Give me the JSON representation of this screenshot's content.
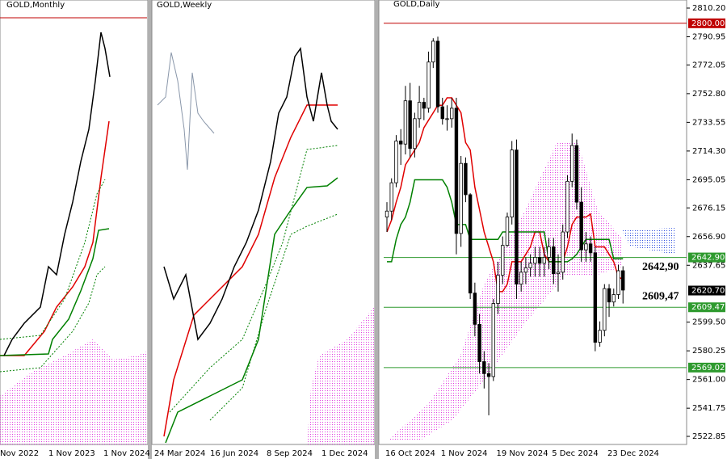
{
  "chart_data": [
    {
      "type": "candlestick",
      "title": "GOLD,Monthly",
      "x_labels": [
        "Nov 2022",
        "1 Nov 2023",
        "1 Nov 2024"
      ]
    },
    {
      "type": "candlestick",
      "title": "GOLD,Weekly",
      "x_labels": [
        "24 Mar 2024",
        "16 Jun 2024",
        "8 Sep 2024",
        "1 Dec 2024"
      ]
    },
    {
      "type": "candlestick",
      "title": "GOLD,Daily",
      "categories": [
        "16 Oct 2024",
        null,
        null,
        null,
        null,
        null,
        null,
        null,
        null,
        null,
        null,
        null,
        "1 Nov 2024",
        null,
        null,
        null,
        null,
        null,
        null,
        null,
        null,
        null,
        null,
        null,
        "19 Nov 2024",
        null,
        null,
        null,
        null,
        null,
        null,
        null,
        null,
        null,
        null,
        null,
        "5 Dec 2024",
        null,
        null,
        null,
        null,
        null,
        null,
        null,
        null,
        null,
        null,
        null,
        "23 Dec 2024",
        null,
        null,
        null
      ],
      "open": [
        2670,
        2674,
        2693,
        2721,
        2719,
        2748,
        2716,
        2736,
        2747,
        2743,
        2774,
        2788,
        2744,
        2736,
        2736,
        2743,
        2659,
        2706,
        2685,
        2619,
        2598,
        2573,
        2565,
        2563,
        2612,
        2631,
        2651,
        2670,
        2715,
        2625,
        2633,
        2636,
        2639,
        2643,
        2639,
        2643,
        2650,
        2632,
        2633,
        2660,
        2694,
        2718,
        2680,
        2648,
        2652,
        2646,
        2586,
        2594,
        2622,
        2613,
        2618,
        2634
      ],
      "high": [
        2680,
        2696,
        2725,
        2729,
        2758,
        2760,
        2740,
        2758,
        2750,
        2781,
        2790,
        2791,
        2750,
        2745,
        2750,
        2750,
        2711,
        2710,
        2686,
        2626,
        2605,
        2580,
        2572,
        2615,
        2640,
        2657,
        2673,
        2721,
        2722,
        2640,
        2643,
        2645,
        2650,
        2650,
        2650,
        2656,
        2656,
        2645,
        2665,
        2698,
        2726,
        2722,
        2690,
        2660,
        2657,
        2650,
        2600,
        2625,
        2625,
        2622,
        2638,
        2637
      ],
      "low": [
        2660,
        2668,
        2690,
        2705,
        2712,
        2710,
        2710,
        2730,
        2735,
        2740,
        2770,
        2740,
        2732,
        2728,
        2730,
        2645,
        2650,
        2680,
        2615,
        2590,
        2565,
        2555,
        2537,
        2560,
        2605,
        2625,
        2650,
        2665,
        2615,
        2620,
        2625,
        2630,
        2630,
        2630,
        2630,
        2635,
        2625,
        2620,
        2628,
        2656,
        2690,
        2675,
        2640,
        2640,
        2640,
        2580,
        2583,
        2590,
        2603,
        2610,
        2615,
        2612
      ],
      "close": [
        2674,
        2693,
        2721,
        2719,
        2748,
        2716,
        2736,
        2747,
        2743,
        2774,
        2788,
        2744,
        2736,
        2736,
        2743,
        2659,
        2706,
        2685,
        2619,
        2598,
        2573,
        2565,
        2563,
        2612,
        2631,
        2651,
        2670,
        2715,
        2625,
        2633,
        2636,
        2639,
        2643,
        2639,
        2643,
        2650,
        2632,
        2633,
        2660,
        2694,
        2718,
        2680,
        2648,
        2652,
        2646,
        2586,
        2594,
        2622,
        2613,
        2618,
        2634,
        2621
      ],
      "series": [
        {
          "color": "#e00000",
          "values": [
            2660,
            2668,
            2680,
            2690,
            2705,
            2710,
            2715,
            2720,
            2730,
            2735,
            2740,
            2745,
            2745,
            2750,
            2750,
            2745,
            2740,
            2720,
            2715,
            2690,
            2675,
            2660,
            2650,
            2640,
            2620,
            2620,
            2625,
            2640,
            2640,
            2640,
            2645,
            2650,
            2660,
            2660,
            2645,
            2640,
            2640,
            2640,
            2640,
            2650,
            2665,
            2670,
            2670,
            2670,
            2672,
            2650,
            2650,
            2650,
            2645,
            2640,
            2630,
            2628
          ]
        },
        {
          "color": "#008000",
          "values": [
            2640,
            2640,
            2655,
            2665,
            2670,
            2680,
            2695,
            2695,
            2695,
            2695,
            2695,
            2695,
            2695,
            2690,
            2680,
            2665,
            2665,
            2665,
            2655,
            2655,
            2655,
            2655,
            2655,
            2655,
            2655,
            2660,
            2660,
            2660,
            2660,
            2660,
            2660,
            2660,
            2660,
            2660,
            2660,
            2640,
            2640,
            2640,
            2640,
            2640,
            2642,
            2645,
            2650,
            2655,
            2655,
            2655,
            2655,
            2655,
            2655,
            2642,
            2642,
            2642
          ]
        }
      ],
      "ylim": [
        2518.52,
        2815.62
      ],
      "yticks": [
        {
          "value": 2810.2,
          "label": "2810.20"
        },
        2790.95,
        2772.05,
        {
          "value": 2752.8,
          "label": "2752.80"
        },
        2733.55,
        {
          "value": 2714.3,
          "label": "2714.30"
        },
        2695.05,
        2676.15,
        {
          "value": 2656.9,
          "label": "2656.90"
        },
        2637.65,
        {
          "value": 2599.5,
          "label": "2599.50"
        },
        2580.25,
        {
          "value": 2561,
          "label": "2561.00"
        },
        2541.75,
        2522.85
      ],
      "levels": [
        {
          "value": 2800,
          "label": "2800.00",
          "color": "#c00000",
          "line": true
        },
        {
          "value": 2642.9,
          "label": "2642.90",
          "color": "#2e9a2e",
          "line": true
        },
        {
          "value": 2620.7,
          "label": "2620.70",
          "color": "#000000",
          "line": false
        },
        {
          "value": 2609.47,
          "label": "2609.47",
          "color": "#2e9a2e",
          "line": true
        },
        {
          "value": 2569.02,
          "label": "2569.02",
          "color": "#2e9a2e",
          "line": true
        }
      ],
      "annotations": [
        {
          "text": "2642,90",
          "value": 2642.9
        },
        {
          "text": "2609,47",
          "value": 2609.47
        }
      ]
    }
  ]
}
